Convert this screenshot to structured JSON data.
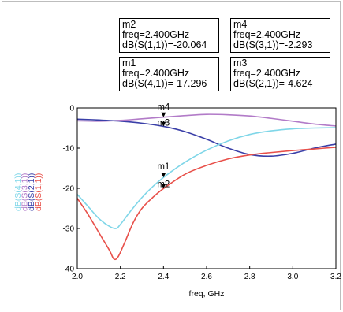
{
  "markers": [
    {
      "id": "m2",
      "name": "m2",
      "freq": "freq=2.400GHz",
      "value": "dB(S(1,1))=-20.064"
    },
    {
      "id": "m4",
      "name": "m4",
      "freq": "freq=2.400GHz",
      "value": "dB(S(3,1))=-2.293"
    },
    {
      "id": "m1",
      "name": "m1",
      "freq": "freq=2.400GHz",
      "value": "dB(S(4,1))=-17.296"
    },
    {
      "id": "m3",
      "name": "m3",
      "freq": "freq=2.400GHz",
      "value": "dB(S(2,1))=-4.624"
    }
  ],
  "chart_data": {
    "type": "line",
    "xlabel": "freq, GHz",
    "xlim": [
      2.0,
      3.2
    ],
    "ylim": [
      -40,
      0
    ],
    "xticks": [
      "2.0",
      "2.2",
      "2.4",
      "2.6",
      "2.8",
      "3.0",
      "3.2"
    ],
    "yticks": [
      "0",
      "-10",
      "-20",
      "-30",
      "-40"
    ],
    "grid": false,
    "legend": "left",
    "series": [
      {
        "name": "dB(S(4,1))",
        "color": "#7fd6e8",
        "x": [
          2.0,
          2.05,
          2.1,
          2.15,
          2.18,
          2.2,
          2.25,
          2.3,
          2.35,
          2.4,
          2.5,
          2.6,
          2.7,
          2.8,
          2.9,
          3.0,
          3.1,
          3.2
        ],
        "y": [
          -21.5,
          -24.5,
          -27.5,
          -29.5,
          -30.0,
          -29.0,
          -25.5,
          -22.3,
          -19.6,
          -17.3,
          -13.5,
          -10.5,
          -8.2,
          -6.6,
          -5.7,
          -5.2,
          -5.0,
          -4.9
        ]
      },
      {
        "name": "dB(S(3,1))",
        "color": "#b27bc8",
        "x": [
          2.0,
          2.1,
          2.2,
          2.3,
          2.4,
          2.5,
          2.6,
          2.7,
          2.8,
          2.9,
          3.0,
          3.1,
          3.2
        ],
        "y": [
          -3.2,
          -3.3,
          -3.1,
          -2.7,
          -2.3,
          -1.9,
          -1.6,
          -1.7,
          -2.0,
          -2.6,
          -3.3,
          -4.0,
          -4.5
        ]
      },
      {
        "name": "dB(S(2,1))",
        "color": "#3a3fa8",
        "x": [
          2.0,
          2.1,
          2.2,
          2.3,
          2.4,
          2.5,
          2.6,
          2.7,
          2.8,
          2.9,
          3.0,
          3.1,
          3.2
        ],
        "y": [
          -2.8,
          -3.0,
          -3.3,
          -3.8,
          -4.6,
          -5.9,
          -7.8,
          -10.0,
          -11.6,
          -12.0,
          -11.3,
          -10.0,
          -9.0
        ]
      },
      {
        "name": "dB(S(1,1))",
        "color": "#e8504a",
        "x": [
          2.0,
          2.05,
          2.1,
          2.15,
          2.17,
          2.19,
          2.22,
          2.26,
          2.3,
          2.35,
          2.4,
          2.5,
          2.6,
          2.7,
          2.8,
          2.9,
          3.0,
          3.1,
          3.2
        ],
        "y": [
          -22.5,
          -26.5,
          -31.0,
          -35.5,
          -37.6,
          -37.0,
          -33.5,
          -28.5,
          -25.0,
          -22.3,
          -20.06,
          -16.5,
          -14.3,
          -12.7,
          -11.7,
          -11.1,
          -10.6,
          -10.2,
          -9.8
        ]
      }
    ],
    "marker_points": [
      {
        "label": "m4",
        "x": 2.4,
        "y": -2.293
      },
      {
        "label": "m3",
        "x": 2.4,
        "y": -4.624
      },
      {
        "label": "m1",
        "x": 2.4,
        "y": -17.296
      },
      {
        "label": "m2",
        "x": 2.4,
        "y": -20.064
      }
    ]
  }
}
